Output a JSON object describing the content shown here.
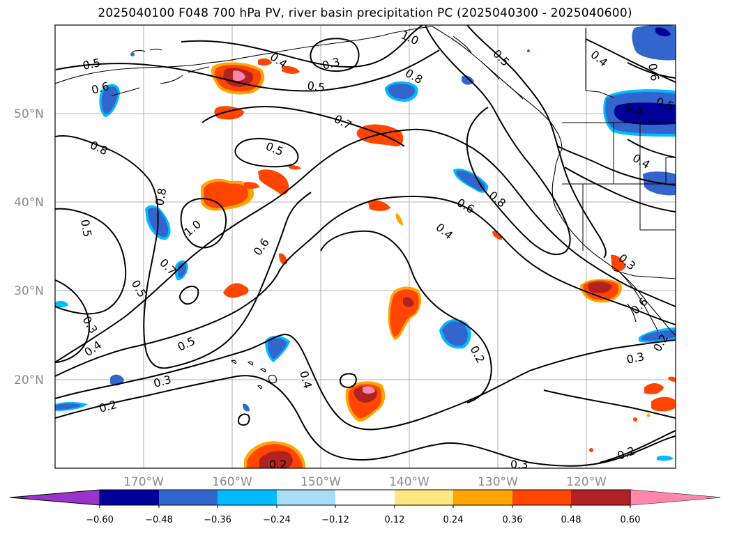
{
  "title": "2025040100 F048 700 hPa PV, river basin precipitation PC (2025040300 - 2025040600)",
  "map": {
    "lat_labels": [
      "50°N",
      "40°N",
      "30°N",
      "20°N"
    ],
    "lon_labels": [
      "170°W",
      "160°W",
      "150°W",
      "140°W",
      "130°W",
      "120°W"
    ],
    "contour_color": "#000000",
    "grid_color": "#b0b0b0",
    "contour_labels": [
      "0.5",
      "0.6",
      "0.8",
      "0.4",
      "0.3",
      "0.5",
      "1.0",
      "0.8",
      "0.5",
      "0.7",
      "0.5",
      "0.8",
      "0.5",
      "1.0",
      "0.7",
      "0.5",
      "0.3",
      "0.4",
      "0.2",
      "0.3",
      "0.5",
      "0.6",
      "0.4",
      "0.6",
      "0.8",
      "0.2",
      "0.4",
      "0.2",
      "0.3",
      "0.3",
      "0.2",
      "0.3",
      "0.6",
      "0.4",
      "0.4",
      "0.5",
      "0.6",
      "0.4",
      "0.2"
    ]
  },
  "colorbar": {
    "ticks": [
      "−0.60",
      "−0.48",
      "−0.36",
      "−0.24",
      "−0.12",
      "0.12",
      "0.24",
      "0.36",
      "0.48",
      "0.60"
    ],
    "colors": [
      "#9933cc",
      "#000099",
      "#3366cc",
      "#00bbff",
      "#aaddf8",
      "#ffffff",
      "#ffe680",
      "#ffa500",
      "#ff4500",
      "#b22222",
      "#ff88aa",
      "#ff88aa"
    ]
  }
}
